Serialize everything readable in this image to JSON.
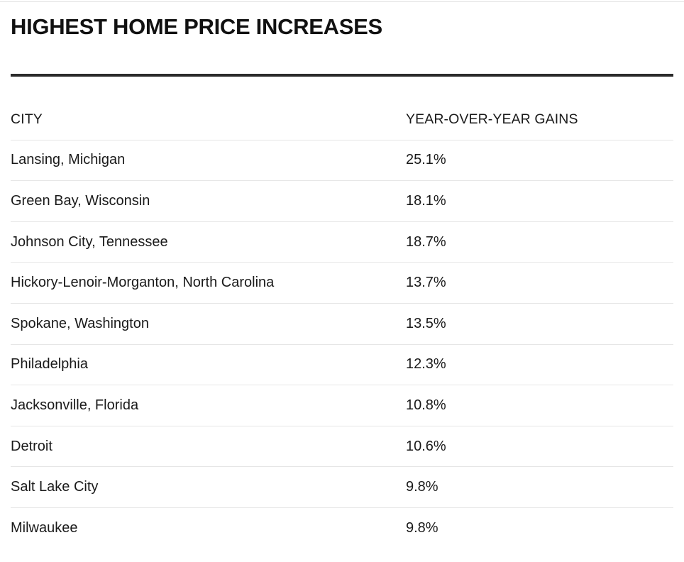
{
  "title": "HIGHEST HOME PRICE INCREASES",
  "table": {
    "headers": {
      "city": "CITY",
      "gain": "YEAR-OVER-YEAR GAINS"
    },
    "rows": [
      {
        "city": "Lansing, Michigan",
        "gain": "25.1%"
      },
      {
        "city": "Green Bay, Wisconsin",
        "gain": "18.1%"
      },
      {
        "city": "Johnson City, Tennessee",
        "gain": "18.7%"
      },
      {
        "city": "Hickory-Lenoir-Morganton, North Carolina",
        "gain": "13.7%"
      },
      {
        "city": "Spokane, Washington",
        "gain": "13.5%"
      },
      {
        "city": "Philadelphia",
        "gain": "12.3%"
      },
      {
        "city": "Jacksonville, Florida",
        "gain": "10.8%"
      },
      {
        "city": "Detroit",
        "gain": "10.6%"
      },
      {
        "city": "Salt Lake City",
        "gain": "9.8%"
      },
      {
        "city": "Milwaukee",
        "gain": "9.8%"
      }
    ]
  }
}
